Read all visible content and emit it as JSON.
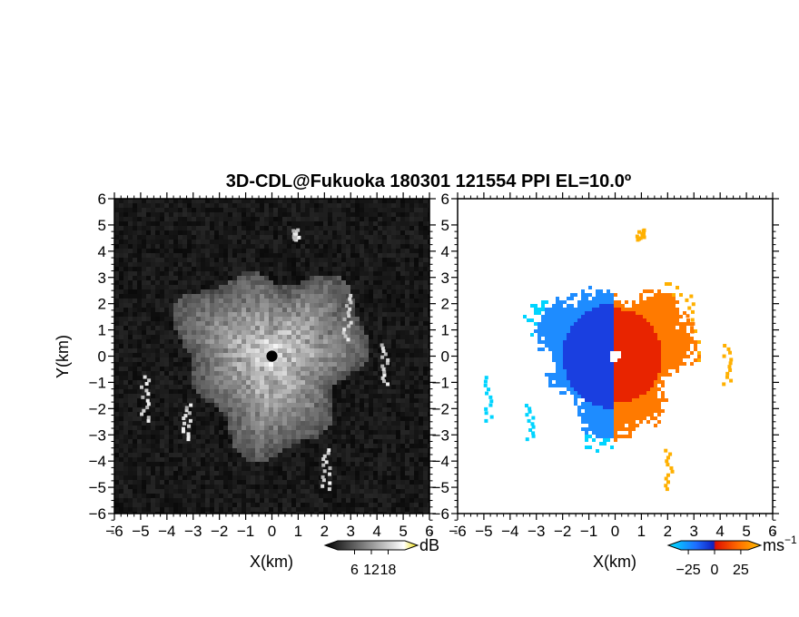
{
  "title": "3D-CDL@Fukuoka 180301 121554 PPI EL=10.0º",
  "chart_data": [
    {
      "type": "heatmap",
      "name": "backscatter",
      "xlabel": "X(km)",
      "ylabel": "Y(km)",
      "xlim": [
        -6,
        6
      ],
      "ylim": [
        -6,
        6
      ],
      "xticks": [
        -6,
        -5,
        -4,
        -3,
        -2,
        -1,
        0,
        1,
        2,
        3,
        4,
        5,
        6
      ],
      "yticks": [
        -6,
        -5,
        -4,
        -3,
        -2,
        -1,
        0,
        1,
        2,
        3,
        4,
        5,
        6
      ],
      "colorbar": {
        "unit": "dB",
        "ticks": [
          6,
          12,
          18
        ],
        "range": [
          0,
          24
        ],
        "colors": [
          "#000000",
          "#ffffff",
          "#f0e000"
        ]
      },
      "features": {
        "echo_radius_km": 3.4,
        "center_blank_radius_km": 0.2
      }
    },
    {
      "type": "heatmap",
      "name": "doppler_velocity",
      "xlabel": "X(km)",
      "xlim": [
        -6,
        6
      ],
      "ylim": [
        -6,
        6
      ],
      "xticks": [
        -6,
        -5,
        -4,
        -3,
        -2,
        -1,
        0,
        1,
        2,
        3,
        4,
        5,
        6
      ],
      "yticks": [
        -6,
        -5,
        -4,
        -3,
        -2,
        -1,
        0,
        1,
        2,
        3,
        4,
        5,
        6
      ],
      "colorbar": {
        "unit": "ms",
        "unit_superscript": "−1",
        "ticks": [
          -25,
          0,
          25
        ],
        "range": [
          -32,
          32
        ],
        "colors": [
          "#00e5ff",
          "#1e6eff",
          "#1020c0",
          "#e01000",
          "#ff6a00",
          "#ffc000"
        ]
      },
      "features": {
        "echo_radius_km": 3.4,
        "center_blank_radius_km": 0.2
      }
    }
  ],
  "tick_labels": {
    "x": [
      "−6",
      "−5",
      "−4",
      "−3",
      "−2",
      "−1",
      "0",
      "1",
      "2",
      "3",
      "4",
      "5",
      "6"
    ],
    "y": [
      "6",
      "5",
      "4",
      "3",
      "2",
      "1",
      "0",
      "−1",
      "−2",
      "−3",
      "−4",
      "−5",
      "−6"
    ]
  },
  "colorbar_labels": {
    "left": [
      "6",
      "12",
      "18"
    ],
    "right": [
      "−25",
      "0",
      "25"
    ]
  },
  "units": {
    "left": "dB",
    "right": "ms",
    "right_sup": "−1"
  }
}
